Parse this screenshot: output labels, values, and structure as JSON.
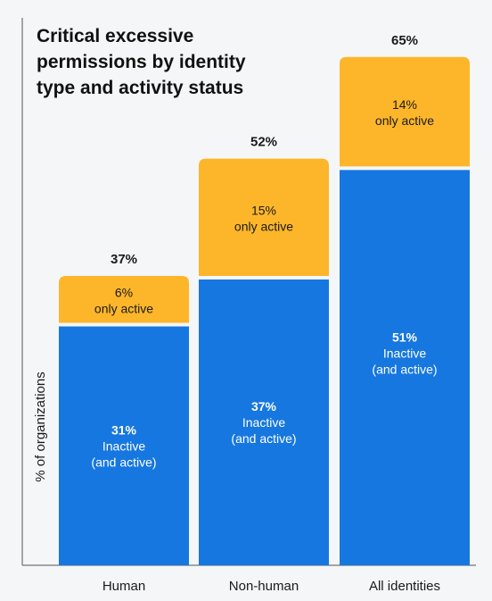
{
  "chart_data": {
    "type": "bar",
    "stacked": true,
    "title": "Critical excessive permissions by identity type and activity status",
    "title_lines": [
      "Critical excessive",
      "permissions by identity",
      "type and activity status"
    ],
    "xlabel": "",
    "ylabel": "% of organizations",
    "ylim": [
      0,
      70
    ],
    "grid": false,
    "categories": [
      "Human",
      "Non-human",
      "All identities"
    ],
    "totals": [
      37,
      52,
      65
    ],
    "total_labels": [
      "37%",
      "52%",
      "65%"
    ],
    "series": [
      {
        "name": "Inactive (and active)",
        "color": "#1677e0",
        "values": [
          31,
          37,
          51
        ],
        "value_labels": [
          "31%",
          "37%",
          "51%"
        ],
        "line1": "Inactive",
        "line2": "(and active)"
      },
      {
        "name": "only active",
        "color": "#fdb62a",
        "values": [
          6,
          15,
          14
        ],
        "value_labels": [
          "6%",
          "15%",
          "14%"
        ],
        "line1": "only active"
      }
    ]
  }
}
